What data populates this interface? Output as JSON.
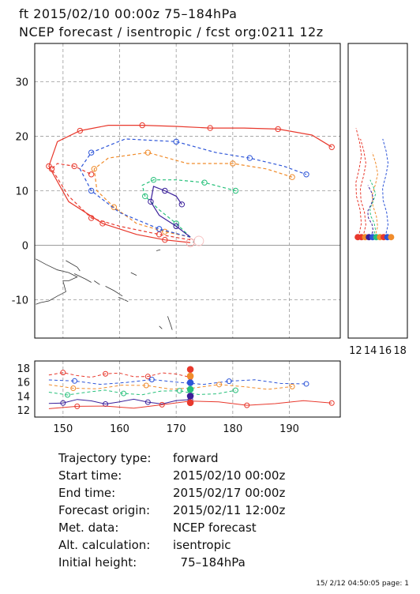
{
  "header": {
    "line1": "ft 2015/02/10 00:00z   75–184hPa",
    "line2": "NCEP forecast / isentropic / fcst org:0211 12z"
  },
  "info": [
    {
      "key": "Trajectory type:",
      "value": "forward"
    },
    {
      "key": "Start time:",
      "value": "2015/02/10 00:00z"
    },
    {
      "key": "End time:",
      "value": "2015/02/17 00:00z"
    },
    {
      "key": "Forecast origin:",
      "value": "2015/02/11 12:00z"
    },
    {
      "key": "Met. data:",
      "value": "NCEP forecast"
    },
    {
      "key": "Alt. calculation:",
      "value": "isentropic"
    },
    {
      "key": "Initial height:",
      "value": "  75–184hPa"
    }
  ],
  "footer": "15/ 2/12 04:50:05 page: 1",
  "chart_data": [
    {
      "type": "line",
      "panel": "map",
      "xlim": [
        145,
        199
      ],
      "ylim": [
        -17,
        37
      ],
      "xticks": [
        150,
        160,
        170,
        180,
        190
      ],
      "yticks": [
        -10,
        0,
        10,
        20,
        30
      ],
      "grid": true,
      "series": [
        {
          "color": "#e8382c",
          "style": "solid",
          "x": [
            172.5,
            168,
            163,
            157,
            151,
            147.5,
            149,
            153,
            158,
            164,
            170,
            176,
            182,
            188,
            194,
            197.5
          ],
          "y": [
            0.5,
            1,
            2,
            4,
            8,
            14.5,
            19,
            21,
            22,
            22,
            21.8,
            21.5,
            21.5,
            21.3,
            20.2,
            18
          ]
        },
        {
          "color": "#e8382c",
          "style": "dashed",
          "x": [
            172.5,
            167,
            160,
            155,
            151,
            148,
            149,
            152,
            155
          ],
          "y": [
            1,
            2,
            3.5,
            5,
            9,
            14,
            15,
            14.5,
            13
          ]
        },
        {
          "color": "#f08c2c",
          "style": "dashed",
          "x": [
            172.5,
            168,
            163,
            159,
            156,
            155.5,
            158,
            165,
            172,
            180,
            186,
            190.5
          ],
          "y": [
            1.5,
            2.5,
            4,
            7,
            10,
            14,
            16,
            17,
            15,
            15,
            14,
            12.5
          ]
        },
        {
          "color": "#2d55d8",
          "style": "dashed",
          "x": [
            172.5,
            167,
            160,
            155,
            153,
            155,
            161,
            170,
            177,
            183,
            189,
            193
          ],
          "y": [
            1.5,
            3,
            6,
            10,
            14,
            17,
            19.5,
            19,
            17,
            16,
            14.5,
            13
          ]
        },
        {
          "color": "#26c07a",
          "style": "dashed",
          "x": [
            172.5,
            170,
            167,
            164.5,
            164,
            166,
            170,
            175,
            180.5
          ],
          "y": [
            1.5,
            4,
            6.5,
            9,
            11,
            12,
            12,
            11.5,
            10
          ]
        },
        {
          "color": "#3a1f9a",
          "style": "solid",
          "x": [
            172.5,
            170,
            167,
            165.5,
            166,
            168,
            170,
            171
          ],
          "y": [
            1.5,
            3.5,
            5.5,
            8,
            10.8,
            10,
            9,
            7.5
          ]
        }
      ]
    },
    {
      "type": "line",
      "panel": "height-vertical",
      "xlim": [
        11,
        19
      ],
      "xticks": [
        12,
        14,
        16,
        18
      ]
    },
    {
      "type": "line",
      "panel": "height-horizontal",
      "xlim": [
        145,
        199
      ],
      "ylim": [
        11,
        19
      ],
      "xticks": [
        150,
        160,
        170,
        180,
        190
      ],
      "yticks": [
        12,
        14,
        16,
        18
      ]
    }
  ]
}
